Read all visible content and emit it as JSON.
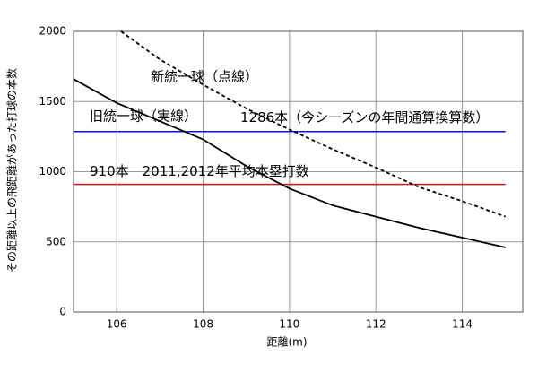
{
  "chart_data": {
    "type": "line",
    "xlabel": "距離(m)",
    "ylabel": "その距離以上の飛距離があった打球の本数",
    "xlim": [
      105,
      115.4
    ],
    "ylim": [
      0,
      2000
    ],
    "xticks": [
      106,
      108,
      110,
      112,
      114
    ],
    "yticks": [
      0,
      500,
      1000,
      1500,
      2000
    ],
    "grid": true,
    "series": [
      {
        "name": "新統一球（点線）",
        "color": "#000000",
        "dashed": true,
        "x": [
          106.1,
          107,
          108,
          109,
          110,
          111,
          112,
          113,
          114,
          115
        ],
        "values": [
          2000,
          1800,
          1620,
          1450,
          1300,
          1160,
          1030,
          890,
          790,
          680
        ]
      },
      {
        "name": "旧統一球（実線）",
        "color": "#000000",
        "dashed": false,
        "x": [
          105,
          106,
          107,
          108,
          109,
          110,
          111,
          112,
          113,
          114,
          115
        ],
        "values": [
          1660,
          1490,
          1360,
          1230,
          1040,
          880,
          760,
          680,
          600,
          530,
          460
        ]
      }
    ],
    "hlines": [
      {
        "value": 1286,
        "label": "1286本（今シーズンの年間通算換算数）",
        "color": "#1010cc"
      },
      {
        "value": 910,
        "label": "910本　2011,2012年平均本塁打数",
        "color": "#dd1111"
      }
    ]
  }
}
